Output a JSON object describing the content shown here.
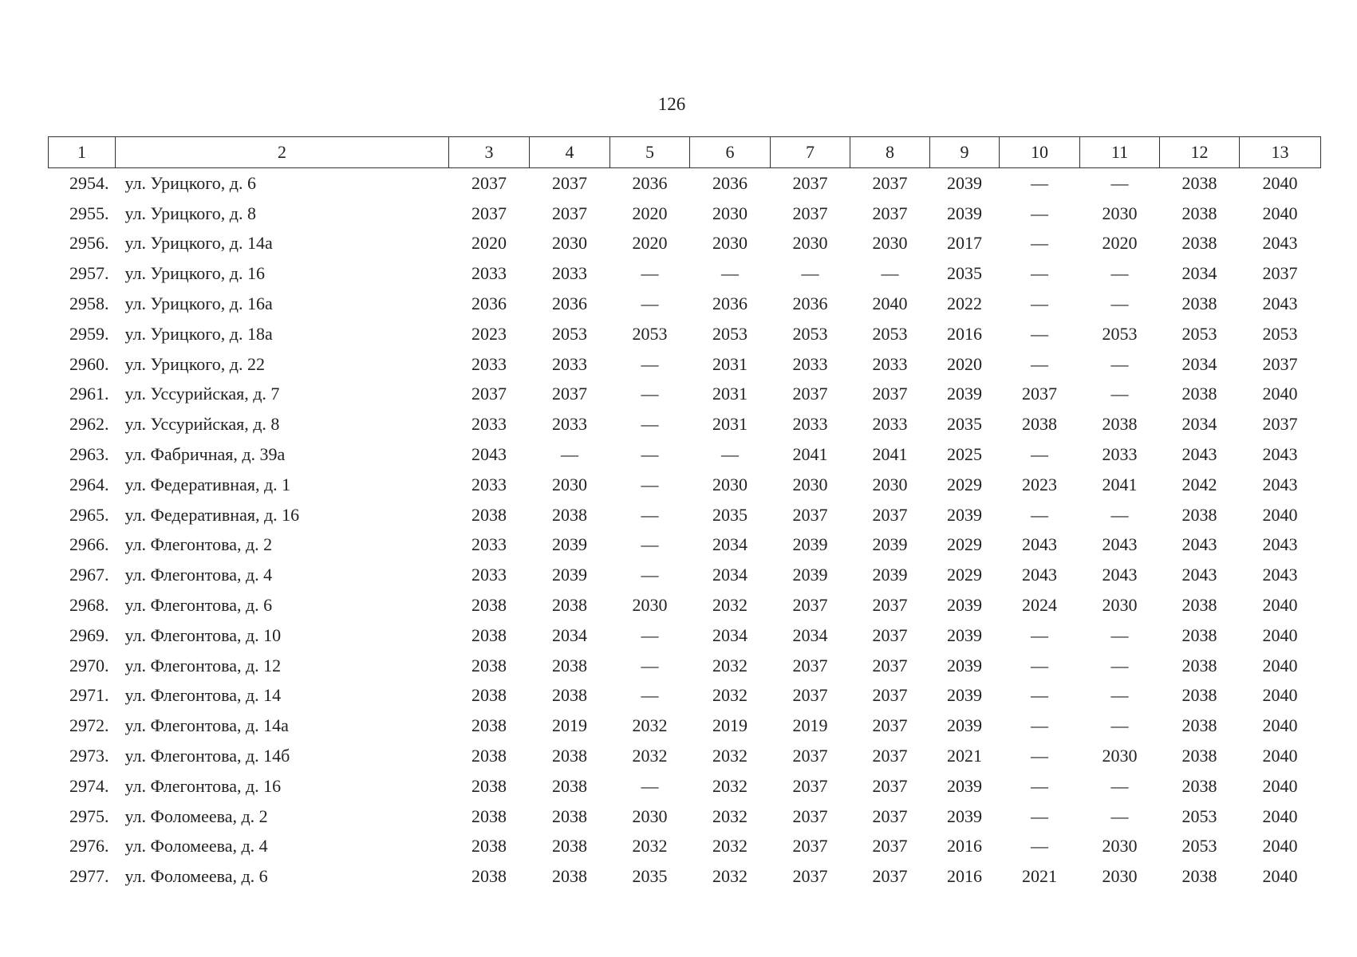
{
  "page_number": "126",
  "table": {
    "header": [
      "1",
      "2",
      "3",
      "4",
      "5",
      "6",
      "7",
      "8",
      "9",
      "10",
      "11",
      "12",
      "13"
    ],
    "rows": [
      [
        "2954.",
        "ул. Урицкого, д. 6",
        "2037",
        "2037",
        "2036",
        "2036",
        "2037",
        "2037",
        "2039",
        "—",
        "—",
        "2038",
        "2040"
      ],
      [
        "2955.",
        "ул. Урицкого, д. 8",
        "2037",
        "2037",
        "2020",
        "2030",
        "2037",
        "2037",
        "2039",
        "—",
        "2030",
        "2038",
        "2040"
      ],
      [
        "2956.",
        "ул. Урицкого, д. 14а",
        "2020",
        "2030",
        "2020",
        "2030",
        "2030",
        "2030",
        "2017",
        "—",
        "2020",
        "2038",
        "2043"
      ],
      [
        "2957.",
        "ул. Урицкого, д. 16",
        "2033",
        "2033",
        "—",
        "—",
        "—",
        "—",
        "2035",
        "—",
        "—",
        "2034",
        "2037"
      ],
      [
        "2958.",
        "ул. Урицкого, д. 16а",
        "2036",
        "2036",
        "—",
        "2036",
        "2036",
        "2040",
        "2022",
        "—",
        "—",
        "2038",
        "2043"
      ],
      [
        "2959.",
        "ул. Урицкого, д. 18а",
        "2023",
        "2053",
        "2053",
        "2053",
        "2053",
        "2053",
        "2016",
        "—",
        "2053",
        "2053",
        "2053"
      ],
      [
        "2960.",
        "ул. Урицкого, д. 22",
        "2033",
        "2033",
        "—",
        "2031",
        "2033",
        "2033",
        "2020",
        "—",
        "—",
        "2034",
        "2037"
      ],
      [
        "2961.",
        "ул. Уссурийская, д. 7",
        "2037",
        "2037",
        "—",
        "2031",
        "2037",
        "2037",
        "2039",
        "2037",
        "—",
        "2038",
        "2040"
      ],
      [
        "2962.",
        "ул. Уссурийская, д. 8",
        "2033",
        "2033",
        "—",
        "2031",
        "2033",
        "2033",
        "2035",
        "2038",
        "2038",
        "2034",
        "2037"
      ],
      [
        "2963.",
        "ул. Фабричная, д. 39а",
        "2043",
        "—",
        "—",
        "—",
        "2041",
        "2041",
        "2025",
        "—",
        "2033",
        "2043",
        "2043"
      ],
      [
        "2964.",
        "ул. Федеративная, д. 1",
        "2033",
        "2030",
        "—",
        "2030",
        "2030",
        "2030",
        "2029",
        "2023",
        "2041",
        "2042",
        "2043"
      ],
      [
        "2965.",
        "ул. Федеративная, д. 16",
        "2038",
        "2038",
        "—",
        "2035",
        "2037",
        "2037",
        "2039",
        "—",
        "—",
        "2038",
        "2040"
      ],
      [
        "2966.",
        "ул. Флегонтова, д. 2",
        "2033",
        "2039",
        "—",
        "2034",
        "2039",
        "2039",
        "2029",
        "2043",
        "2043",
        "2043",
        "2043"
      ],
      [
        "2967.",
        "ул. Флегонтова, д. 4",
        "2033",
        "2039",
        "—",
        "2034",
        "2039",
        "2039",
        "2029",
        "2043",
        "2043",
        "2043",
        "2043"
      ],
      [
        "2968.",
        "ул. Флегонтова, д. 6",
        "2038",
        "2038",
        "2030",
        "2032",
        "2037",
        "2037",
        "2039",
        "2024",
        "2030",
        "2038",
        "2040"
      ],
      [
        "2969.",
        "ул. Флегонтова, д. 10",
        "2038",
        "2034",
        "—",
        "2034",
        "2034",
        "2037",
        "2039",
        "—",
        "—",
        "2038",
        "2040"
      ],
      [
        "2970.",
        "ул. Флегонтова, д. 12",
        "2038",
        "2038",
        "—",
        "2032",
        "2037",
        "2037",
        "2039",
        "—",
        "—",
        "2038",
        "2040"
      ],
      [
        "2971.",
        "ул. Флегонтова, д. 14",
        "2038",
        "2038",
        "—",
        "2032",
        "2037",
        "2037",
        "2039",
        "—",
        "—",
        "2038",
        "2040"
      ],
      [
        "2972.",
        "ул. Флегонтова, д. 14а",
        "2038",
        "2019",
        "2032",
        "2019",
        "2019",
        "2037",
        "2039",
        "—",
        "—",
        "2038",
        "2040"
      ],
      [
        "2973.",
        "ул. Флегонтова, д. 14б",
        "2038",
        "2038",
        "2032",
        "2032",
        "2037",
        "2037",
        "2021",
        "—",
        "2030",
        "2038",
        "2040"
      ],
      [
        "2974.",
        "ул. Флегонтова, д. 16",
        "2038",
        "2038",
        "—",
        "2032",
        "2037",
        "2037",
        "2039",
        "—",
        "—",
        "2038",
        "2040"
      ],
      [
        "2975.",
        "ул. Фоломеева, д. 2",
        "2038",
        "2038",
        "2030",
        "2032",
        "2037",
        "2037",
        "2039",
        "—",
        "—",
        "2053",
        "2040"
      ],
      [
        "2976.",
        "ул. Фоломеева, д. 4",
        "2038",
        "2038",
        "2032",
        "2032",
        "2037",
        "2037",
        "2016",
        "—",
        "2030",
        "2053",
        "2040"
      ],
      [
        "2977.",
        "ул. Фоломеева, д. 6",
        "2038",
        "2038",
        "2035",
        "2032",
        "2037",
        "2037",
        "2016",
        "2021",
        "2030",
        "2038",
        "2040"
      ]
    ]
  }
}
